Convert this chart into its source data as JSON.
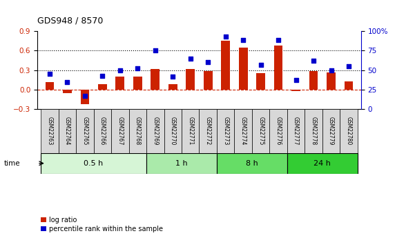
{
  "title": "GDS948 / 8570",
  "samples": [
    "GSM22763",
    "GSM22764",
    "GSM22765",
    "GSM22766",
    "GSM22767",
    "GSM22768",
    "GSM22769",
    "GSM22770",
    "GSM22771",
    "GSM22772",
    "GSM22773",
    "GSM22774",
    "GSM22775",
    "GSM22776",
    "GSM22777",
    "GSM22778",
    "GSM22779",
    "GSM22780"
  ],
  "log_ratio": [
    0.12,
    -0.05,
    -0.22,
    0.09,
    0.2,
    0.2,
    0.32,
    0.09,
    0.32,
    0.29,
    0.75,
    0.65,
    0.25,
    0.68,
    -0.02,
    0.29,
    0.26,
    0.13
  ],
  "percentile": [
    45,
    35,
    17,
    43,
    50,
    52,
    75,
    42,
    65,
    60,
    93,
    88,
    57,
    88,
    37,
    62,
    50,
    55
  ],
  "time_groups": [
    {
      "label": "0.5 h",
      "start": 0,
      "end": 6,
      "color": "#d6f5d6"
    },
    {
      "label": "1 h",
      "start": 6,
      "end": 10,
      "color": "#aaeaaa"
    },
    {
      "label": "8 h",
      "start": 10,
      "end": 14,
      "color": "#66dd66"
    },
    {
      "label": "24 h",
      "start": 14,
      "end": 18,
      "color": "#33cc33"
    }
  ],
  "bar_color": "#cc2200",
  "dot_color": "#0000cc",
  "ylim_left": [
    -0.3,
    0.9
  ],
  "ylim_right": [
    0,
    100
  ],
  "yticks_left": [
    -0.3,
    0.0,
    0.3,
    0.6,
    0.9
  ],
  "yticks_right": [
    0,
    25,
    50,
    75,
    100
  ],
  "hlines": [
    0.3,
    0.6
  ],
  "hline_zero_color": "#cc2200",
  "bg_color": "#ffffff",
  "legend_items": [
    "log ratio",
    "percentile rank within the sample"
  ],
  "xlabel_bg": "#d8d8d8"
}
